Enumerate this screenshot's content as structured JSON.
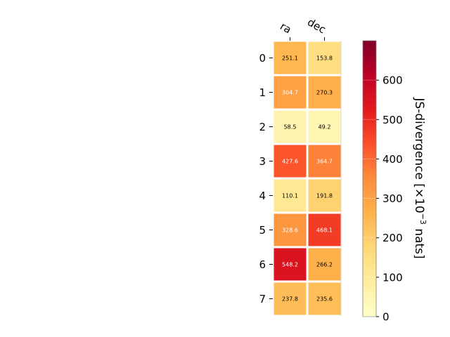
{
  "chart_data": {
    "type": "heatmap",
    "columns": [
      "ra",
      "dec"
    ],
    "rows": [
      "0",
      "1",
      "2",
      "3",
      "4",
      "5",
      "6",
      "7"
    ],
    "values": [
      [
        251.1,
        153.8
      ],
      [
        304.7,
        270.3
      ],
      [
        58.5,
        49.2
      ],
      [
        427.6,
        364.7
      ],
      [
        110.1,
        191.8
      ],
      [
        328.6,
        468.1
      ],
      [
        548.2,
        266.2
      ],
      [
        237.8,
        235.6
      ]
    ],
    "value_labels": [
      [
        "251.1",
        "153.8"
      ],
      [
        "304.7",
        "270.3"
      ],
      [
        "58.5",
        "49.2"
      ],
      [
        "427.6",
        "364.7"
      ],
      [
        "110.1",
        "191.8"
      ],
      [
        "328.6",
        "468.1"
      ],
      [
        "548.2",
        "266.2"
      ],
      [
        "237.8",
        "235.6"
      ]
    ],
    "colormap": "YlOrRd",
    "vmin": 0,
    "vmax": 700,
    "colorbar_ticks": [
      0,
      100,
      200,
      300,
      400,
      500,
      600
    ],
    "colorbar_label_prefix": "JS-divergence [×10",
    "colorbar_label_exponent": "−3",
    "colorbar_label_suffix": " nats]",
    "grid": false
  }
}
